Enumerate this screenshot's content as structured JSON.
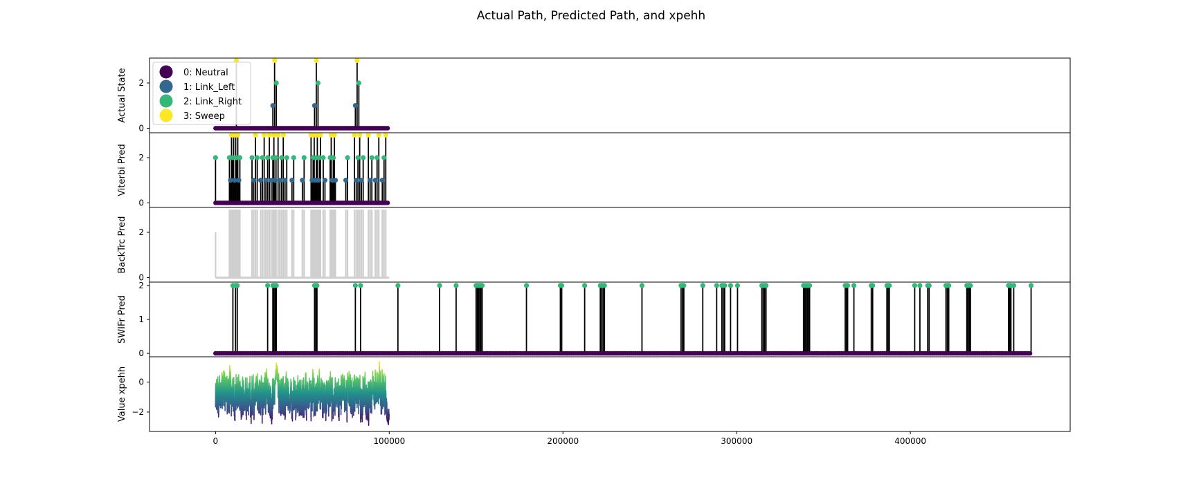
{
  "chart_data": {
    "type": "stacked-panels",
    "title": "Actual Path, Predicted Path, and xpehh",
    "x_ticks": [
      0,
      100000,
      200000,
      300000,
      400000
    ],
    "x_tick_labels": [
      "0",
      "100000",
      "200000",
      "300000",
      "400000"
    ],
    "xlim": [
      -38000,
      492000
    ],
    "legend": {
      "placement": "upper-left of top panel",
      "entries": [
        {
          "label": "0: Neutral",
          "color": "#440154"
        },
        {
          "label": "1: Link_Left",
          "color": "#31688e"
        },
        {
          "label": "2: Link_Right",
          "color": "#35b779"
        },
        {
          "label": "3: Sweep",
          "color": "#fde725"
        }
      ]
    },
    "panels": [
      {
        "ylabel": "Actual State",
        "type": "state-path",
        "ylim": [
          -0.2,
          3.1
        ],
        "y_ticks": [
          0,
          2
        ],
        "y_tick_labels": [
          "0",
          "2"
        ],
        "x_range": [
          0,
          100000
        ],
        "events": [
          {
            "x": 12000,
            "state": 3
          },
          {
            "x": 33000,
            "state": 1
          },
          {
            "x": 34000,
            "state": 3
          },
          {
            "x": 35000,
            "state": 2
          },
          {
            "x": 57000,
            "state": 1
          },
          {
            "x": 58000,
            "state": 3
          },
          {
            "x": 59000,
            "state": 2
          },
          {
            "x": 80500,
            "state": 1
          },
          {
            "x": 81500,
            "state": 3
          },
          {
            "x": 82500,
            "state": 2
          }
        ]
      },
      {
        "ylabel": "Viterbi Pred",
        "type": "state-path",
        "ylim": [
          -0.2,
          3.1
        ],
        "y_ticks": [
          0,
          2
        ],
        "y_tick_labels": [
          "0",
          "2"
        ],
        "x_range": [
          0,
          100000
        ],
        "events": [
          {
            "x": 0,
            "state": 2
          },
          {
            "x": 8000,
            "state": 2
          },
          {
            "x": 8600,
            "state": 1
          },
          {
            "x": 9200,
            "state": 3
          },
          {
            "x": 9800,
            "state": 2
          },
          {
            "x": 10400,
            "state": 3
          },
          {
            "x": 11000,
            "state": 1
          },
          {
            "x": 11600,
            "state": 3
          },
          {
            "x": 12200,
            "state": 2
          },
          {
            "x": 12800,
            "state": 3
          },
          {
            "x": 13400,
            "state": 1
          },
          {
            "x": 14000,
            "state": 2
          },
          {
            "x": 21000,
            "state": 2
          },
          {
            "x": 22000,
            "state": 1
          },
          {
            "x": 23000,
            "state": 3
          },
          {
            "x": 24000,
            "state": 2
          },
          {
            "x": 26000,
            "state": 1
          },
          {
            "x": 27000,
            "state": 2
          },
          {
            "x": 28000,
            "state": 3
          },
          {
            "x": 29000,
            "state": 1
          },
          {
            "x": 30000,
            "state": 2
          },
          {
            "x": 31000,
            "state": 3
          },
          {
            "x": 32000,
            "state": 1
          },
          {
            "x": 33000,
            "state": 2
          },
          {
            "x": 33600,
            "state": 3
          },
          {
            "x": 34200,
            "state": 1
          },
          {
            "x": 34800,
            "state": 2
          },
          {
            "x": 36000,
            "state": 3
          },
          {
            "x": 37000,
            "state": 1
          },
          {
            "x": 38000,
            "state": 2
          },
          {
            "x": 39000,
            "state": 3
          },
          {
            "x": 40000,
            "state": 1
          },
          {
            "x": 41000,
            "state": 2
          },
          {
            "x": 44000,
            "state": 1
          },
          {
            "x": 45000,
            "state": 2
          },
          {
            "x": 50000,
            "state": 1
          },
          {
            "x": 51000,
            "state": 2
          },
          {
            "x": 55000,
            "state": 3
          },
          {
            "x": 55600,
            "state": 1
          },
          {
            "x": 56200,
            "state": 2
          },
          {
            "x": 56800,
            "state": 3
          },
          {
            "x": 57400,
            "state": 1
          },
          {
            "x": 58000,
            "state": 2
          },
          {
            "x": 58600,
            "state": 3
          },
          {
            "x": 59200,
            "state": 1
          },
          {
            "x": 59800,
            "state": 2
          },
          {
            "x": 60400,
            "state": 3
          },
          {
            "x": 62000,
            "state": 2
          },
          {
            "x": 63000,
            "state": 1
          },
          {
            "x": 66000,
            "state": 2
          },
          {
            "x": 66600,
            "state": 3
          },
          {
            "x": 67200,
            "state": 1
          },
          {
            "x": 67800,
            "state": 2
          },
          {
            "x": 68400,
            "state": 3
          },
          {
            "x": 69000,
            "state": 1
          },
          {
            "x": 75000,
            "state": 1
          },
          {
            "x": 76000,
            "state": 2
          },
          {
            "x": 80000,
            "state": 3
          },
          {
            "x": 81000,
            "state": 1
          },
          {
            "x": 82000,
            "state": 2
          },
          {
            "x": 83000,
            "state": 3
          },
          {
            "x": 84000,
            "state": 1
          },
          {
            "x": 85000,
            "state": 2
          },
          {
            "x": 88000,
            "state": 3
          },
          {
            "x": 89000,
            "state": 1
          },
          {
            "x": 90000,
            "state": 2
          },
          {
            "x": 92000,
            "state": 1
          },
          {
            "x": 93000,
            "state": 2
          },
          {
            "x": 94000,
            "state": 3
          },
          {
            "x": 96000,
            "state": 1
          },
          {
            "x": 97000,
            "state": 2
          },
          {
            "x": 98000,
            "state": 3
          }
        ]
      },
      {
        "ylabel": "BackTrc Pred",
        "type": "state-path-gray",
        "ylim": [
          -0.2,
          3.1
        ],
        "y_ticks": [
          0,
          2
        ],
        "y_tick_labels": [
          "0",
          "2"
        ],
        "x_range": [
          0,
          100000
        ],
        "events": [
          {
            "x": 0,
            "state": 2
          },
          {
            "x": 8000,
            "state": 3
          },
          {
            "x": 8600,
            "state": 3
          },
          {
            "x": 9200,
            "state": 3
          },
          {
            "x": 9800,
            "state": 3
          },
          {
            "x": 10400,
            "state": 3
          },
          {
            "x": 11000,
            "state": 3
          },
          {
            "x": 11600,
            "state": 3
          },
          {
            "x": 12200,
            "state": 3
          },
          {
            "x": 12800,
            "state": 3
          },
          {
            "x": 13400,
            "state": 3
          },
          {
            "x": 14000,
            "state": 3
          },
          {
            "x": 21000,
            "state": 3
          },
          {
            "x": 22000,
            "state": 3
          },
          {
            "x": 23000,
            "state": 3
          },
          {
            "x": 24000,
            "state": 3
          },
          {
            "x": 26000,
            "state": 3
          },
          {
            "x": 27000,
            "state": 3
          },
          {
            "x": 28000,
            "state": 3
          },
          {
            "x": 29000,
            "state": 3
          },
          {
            "x": 30000,
            "state": 3
          },
          {
            "x": 31000,
            "state": 3
          },
          {
            "x": 32000,
            "state": 3
          },
          {
            "x": 33000,
            "state": 3
          },
          {
            "x": 33600,
            "state": 3
          },
          {
            "x": 34200,
            "state": 3
          },
          {
            "x": 34800,
            "state": 3
          },
          {
            "x": 36000,
            "state": 3
          },
          {
            "x": 37000,
            "state": 3
          },
          {
            "x": 38000,
            "state": 3
          },
          {
            "x": 39000,
            "state": 3
          },
          {
            "x": 40000,
            "state": 3
          },
          {
            "x": 41000,
            "state": 3
          },
          {
            "x": 44000,
            "state": 3
          },
          {
            "x": 45000,
            "state": 3
          },
          {
            "x": 50000,
            "state": 3
          },
          {
            "x": 51000,
            "state": 3
          },
          {
            "x": 55000,
            "state": 3
          },
          {
            "x": 55600,
            "state": 3
          },
          {
            "x": 56200,
            "state": 3
          },
          {
            "x": 56800,
            "state": 3
          },
          {
            "x": 57400,
            "state": 3
          },
          {
            "x": 58000,
            "state": 3
          },
          {
            "x": 58600,
            "state": 3
          },
          {
            "x": 59200,
            "state": 3
          },
          {
            "x": 59800,
            "state": 3
          },
          {
            "x": 60400,
            "state": 3
          },
          {
            "x": 62000,
            "state": 3
          },
          {
            "x": 63000,
            "state": 3
          },
          {
            "x": 66000,
            "state": 3
          },
          {
            "x": 66600,
            "state": 3
          },
          {
            "x": 67200,
            "state": 3
          },
          {
            "x": 67800,
            "state": 3
          },
          {
            "x": 68400,
            "state": 3
          },
          {
            "x": 69000,
            "state": 3
          },
          {
            "x": 75000,
            "state": 3
          },
          {
            "x": 76000,
            "state": 3
          },
          {
            "x": 80000,
            "state": 3
          },
          {
            "x": 81000,
            "state": 3
          },
          {
            "x": 82000,
            "state": 3
          },
          {
            "x": 83000,
            "state": 3
          },
          {
            "x": 84000,
            "state": 3
          },
          {
            "x": 85000,
            "state": 3
          },
          {
            "x": 88000,
            "state": 3
          },
          {
            "x": 89000,
            "state": 3
          },
          {
            "x": 90000,
            "state": 3
          },
          {
            "x": 92000,
            "state": 3
          },
          {
            "x": 93000,
            "state": 3
          },
          {
            "x": 94000,
            "state": 3
          },
          {
            "x": 96000,
            "state": 3
          },
          {
            "x": 97000,
            "state": 3
          },
          {
            "x": 98000,
            "state": 3
          }
        ]
      },
      {
        "ylabel": "SWIFr Pred",
        "type": "state-path",
        "ylim": [
          -0.1,
          2.1
        ],
        "y_ticks": [
          0,
          1,
          2
        ],
        "y_tick_labels": [
          "0",
          "1",
          "2"
        ],
        "x_range": [
          0,
          470000
        ],
        "events": [
          {
            "x": 10000,
            "state": 2
          },
          {
            "x": 11500,
            "state": 2
          },
          {
            "x": 12500,
            "state": 2
          },
          {
            "x": 30000,
            "state": 2
          },
          {
            "x": 33000,
            "state": 2
          },
          {
            "x": 33700,
            "state": 2
          },
          {
            "x": 34400,
            "state": 2
          },
          {
            "x": 35000,
            "state": 2
          },
          {
            "x": 57000,
            "state": 2
          },
          {
            "x": 57700,
            "state": 2
          },
          {
            "x": 58400,
            "state": 2
          },
          {
            "x": 80500,
            "state": 2
          },
          {
            "x": 83500,
            "state": 2
          },
          {
            "x": 105000,
            "state": 2
          },
          {
            "x": 129000,
            "state": 2
          },
          {
            "x": 138500,
            "state": 2
          },
          {
            "x": 150000,
            "state": 2
          },
          {
            "x": 150700,
            "state": 2
          },
          {
            "x": 151400,
            "state": 2
          },
          {
            "x": 152100,
            "state": 2
          },
          {
            "x": 152800,
            "state": 2
          },
          {
            "x": 153500,
            "state": 2
          },
          {
            "x": 179000,
            "state": 2
          },
          {
            "x": 198500,
            "state": 2
          },
          {
            "x": 199300,
            "state": 2
          },
          {
            "x": 212500,
            "state": 2
          },
          {
            "x": 221500,
            "state": 2
          },
          {
            "x": 222300,
            "state": 2
          },
          {
            "x": 223100,
            "state": 2
          },
          {
            "x": 223900,
            "state": 2
          },
          {
            "x": 245500,
            "state": 2
          },
          {
            "x": 268000,
            "state": 2
          },
          {
            "x": 268800,
            "state": 2
          },
          {
            "x": 269600,
            "state": 2
          },
          {
            "x": 280500,
            "state": 2
          },
          {
            "x": 288500,
            "state": 2
          },
          {
            "x": 291500,
            "state": 2
          },
          {
            "x": 292300,
            "state": 2
          },
          {
            "x": 293100,
            "state": 2
          },
          {
            "x": 296500,
            "state": 2
          },
          {
            "x": 300500,
            "state": 2
          },
          {
            "x": 314500,
            "state": 2
          },
          {
            "x": 315300,
            "state": 2
          },
          {
            "x": 316100,
            "state": 2
          },
          {
            "x": 316900,
            "state": 2
          },
          {
            "x": 338500,
            "state": 2
          },
          {
            "x": 339200,
            "state": 2
          },
          {
            "x": 339900,
            "state": 2
          },
          {
            "x": 340600,
            "state": 2
          },
          {
            "x": 341300,
            "state": 2
          },
          {
            "x": 342000,
            "state": 2
          },
          {
            "x": 362500,
            "state": 2
          },
          {
            "x": 363200,
            "state": 2
          },
          {
            "x": 363900,
            "state": 2
          },
          {
            "x": 367500,
            "state": 2
          },
          {
            "x": 377500,
            "state": 2
          },
          {
            "x": 378300,
            "state": 2
          },
          {
            "x": 386500,
            "state": 2
          },
          {
            "x": 387200,
            "state": 2
          },
          {
            "x": 387900,
            "state": 2
          },
          {
            "x": 402500,
            "state": 2
          },
          {
            "x": 405500,
            "state": 2
          },
          {
            "x": 410000,
            "state": 2
          },
          {
            "x": 410800,
            "state": 2
          },
          {
            "x": 420500,
            "state": 2
          },
          {
            "x": 421300,
            "state": 2
          },
          {
            "x": 422100,
            "state": 2
          },
          {
            "x": 432500,
            "state": 2
          },
          {
            "x": 433200,
            "state": 2
          },
          {
            "x": 433900,
            "state": 2
          },
          {
            "x": 434600,
            "state": 2
          },
          {
            "x": 456500,
            "state": 2
          },
          {
            "x": 457200,
            "state": 2
          },
          {
            "x": 457900,
            "state": 2
          },
          {
            "x": 459500,
            "state": 2
          },
          {
            "x": 469500,
            "state": 2
          }
        ]
      },
      {
        "ylabel": "Value xpehh",
        "type": "noisy-line",
        "ylim": [
          -3.3,
          1.7
        ],
        "y_ticks": [
          0,
          -2
        ],
        "y_tick_labels": [
          "0",
          "−2"
        ],
        "x_range": [
          0,
          100000
        ],
        "mean": -0.9,
        "noise_range": [
          -2.6,
          0.3
        ],
        "peaks": [
          {
            "x": 35000,
            "value": 1.5
          },
          {
            "x": 99500,
            "value": -2.9
          }
        ]
      }
    ]
  }
}
